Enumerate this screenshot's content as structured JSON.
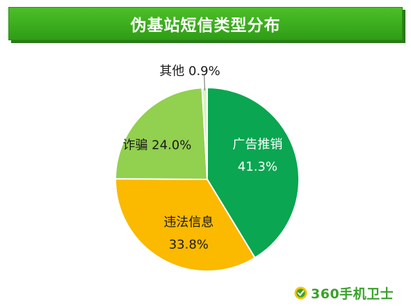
{
  "title": "伪基站短信类型分布",
  "brand": {
    "text": "360手机卫士",
    "color": "#3aa12a",
    "logo_icon": "shield-logo-icon"
  },
  "chart_data": {
    "type": "pie",
    "title": "伪基站短信类型分布",
    "start_angle_deg": 0,
    "direction": "clockwise",
    "slices": [
      {
        "label": "广告推销",
        "value": 41.3,
        "value_text": "41.3%",
        "color": "#0aa651",
        "label_inside": true
      },
      {
        "label": "违法信息",
        "value": 33.8,
        "value_text": "33.8%",
        "color": "#fbb900",
        "label_inside": true
      },
      {
        "label": "诈骗",
        "value": 24.0,
        "value_text": "24.0%",
        "color": "#92d050",
        "label_inside": true
      },
      {
        "label": "其他",
        "value": 0.9,
        "value_text": "0.9%",
        "color": "#d9f2c4",
        "label_inside": false
      }
    ]
  }
}
